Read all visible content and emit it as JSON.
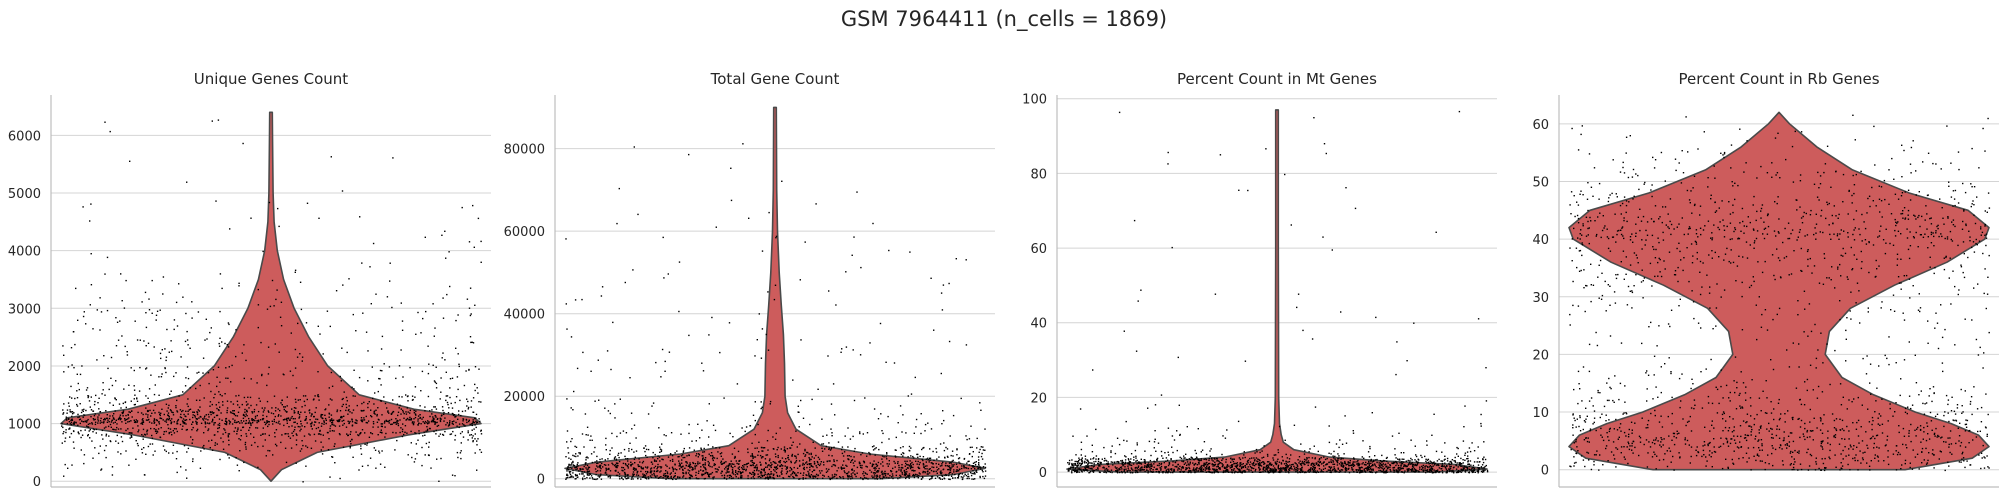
{
  "figure": {
    "suptitle": "GSM 7964411 (n_cells = 1869)"
  },
  "chart_data": [
    {
      "type": "violin",
      "title": "Unique Genes Count",
      "ylim": [
        -100,
        6700
      ],
      "yticks": [
        0,
        1000,
        2000,
        3000,
        4000,
        5000,
        6000
      ],
      "grid": "horizontal",
      "violin_color": "#cd5c5c",
      "point_color": "#000000",
      "n_points": 1869,
      "violin_profile": [
        [
          0,
          0
        ],
        [
          200,
          0.05
        ],
        [
          500,
          0.22
        ],
        [
          800,
          0.65
        ],
        [
          1000,
          1.0
        ],
        [
          1100,
          0.97
        ],
        [
          1250,
          0.68
        ],
        [
          1500,
          0.42
        ],
        [
          2000,
          0.27
        ],
        [
          2500,
          0.18
        ],
        [
          3000,
          0.11
        ],
        [
          3500,
          0.06
        ],
        [
          4000,
          0.03
        ],
        [
          4500,
          0.015
        ],
        [
          5000,
          0.01
        ],
        [
          6000,
          0.007
        ],
        [
          6400,
          0.006
        ]
      ],
      "points_summary": {
        "min": 0,
        "max": 6400,
        "bulk_range": [
          500,
          2500
        ]
      }
    },
    {
      "type": "violin",
      "title": "Total Gene Count",
      "ylim": [
        -2000,
        93000
      ],
      "yticks": [
        0,
        20000,
        40000,
        60000,
        80000
      ],
      "grid": "horizontal",
      "violin_color": "#cd5c5c",
      "point_color": "#000000",
      "n_points": 1869,
      "violin_profile": [
        [
          0,
          0.5
        ],
        [
          1000,
          0.85
        ],
        [
          2500,
          1.0
        ],
        [
          4000,
          0.85
        ],
        [
          6000,
          0.45
        ],
        [
          8000,
          0.22
        ],
        [
          12000,
          0.1
        ],
        [
          16000,
          0.06
        ],
        [
          20000,
          0.048
        ],
        [
          28000,
          0.045
        ],
        [
          35000,
          0.04
        ],
        [
          42000,
          0.03
        ],
        [
          50000,
          0.02
        ],
        [
          60000,
          0.012
        ],
        [
          70000,
          0.008
        ],
        [
          90000,
          0.006
        ]
      ],
      "points_summary": {
        "min": 0,
        "max": 90000,
        "bulk_range": [
          0,
          10000
        ]
      }
    },
    {
      "type": "violin",
      "title": "Percent Count in Mt Genes",
      "ylim": [
        -4,
        101
      ],
      "yticks": [
        0,
        20,
        40,
        60,
        80,
        100
      ],
      "grid": "horizontal",
      "violin_color": "#cd5c5c",
      "point_color": "#000000",
      "n_points": 1869,
      "violin_profile": [
        [
          0,
          0.75
        ],
        [
          0.8,
          1.0
        ],
        [
          2,
          0.85
        ],
        [
          3,
          0.5
        ],
        [
          4,
          0.25
        ],
        [
          6,
          0.08
        ],
        [
          8,
          0.03
        ],
        [
          10,
          0.02
        ],
        [
          13,
          0.012
        ],
        [
          20,
          0.008
        ],
        [
          40,
          0.007
        ],
        [
          60,
          0.006
        ],
        [
          80,
          0.006
        ],
        [
          97,
          0.006
        ]
      ],
      "points_summary": {
        "min": 0,
        "max": 97,
        "bulk_range": [
          0,
          5
        ]
      }
    },
    {
      "type": "violin",
      "title": "Percent Count in Rb Genes",
      "ylim": [
        -3,
        65
      ],
      "yticks": [
        0,
        10,
        20,
        30,
        40,
        50,
        60
      ],
      "grid": "horizontal",
      "violin_color": "#cd5c5c",
      "point_color": "#000000",
      "n_points": 1869,
      "violin_profile": [
        [
          0,
          0.6
        ],
        [
          2,
          0.92
        ],
        [
          4,
          1.0
        ],
        [
          6,
          0.95
        ],
        [
          8,
          0.82
        ],
        [
          10,
          0.65
        ],
        [
          13,
          0.45
        ],
        [
          16,
          0.3
        ],
        [
          20,
          0.22
        ],
        [
          24,
          0.24
        ],
        [
          28,
          0.34
        ],
        [
          32,
          0.55
        ],
        [
          36,
          0.8
        ],
        [
          40,
          0.98
        ],
        [
          42,
          1.0
        ],
        [
          45,
          0.9
        ],
        [
          48,
          0.62
        ],
        [
          52,
          0.35
        ],
        [
          56,
          0.18
        ],
        [
          60,
          0.05
        ],
        [
          62,
          0
        ]
      ],
      "points_summary": {
        "min": 0,
        "max": 62,
        "bulk_range": [
          0,
          55
        ]
      }
    }
  ]
}
